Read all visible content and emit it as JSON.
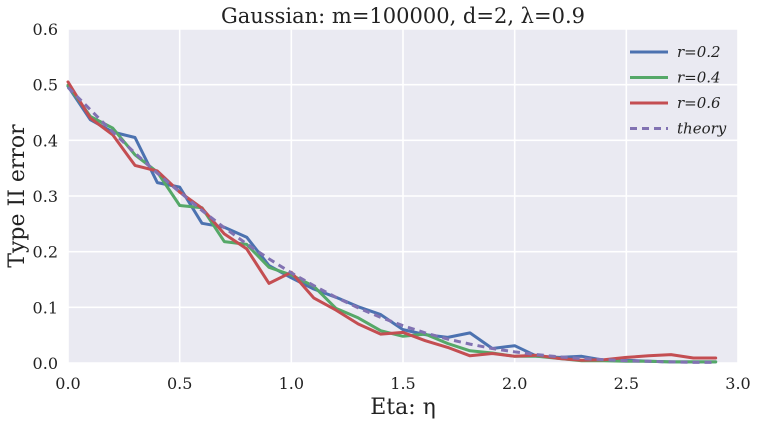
{
  "chart_data": {
    "type": "line",
    "title": "Gaussian: m=100000, d=2, λ=0.9",
    "xlabel": "Eta: η",
    "ylabel": "Type II error",
    "xlim": [
      0.0,
      3.0
    ],
    "ylim": [
      0.0,
      0.6
    ],
    "xticks": [
      "0.0",
      "0.5",
      "1.0",
      "1.5",
      "2.0",
      "2.5",
      "3.0"
    ],
    "yticks": [
      "0.0",
      "0.1",
      "0.2",
      "0.3",
      "0.4",
      "0.5",
      "0.6"
    ],
    "grid": true,
    "legend_position": "top-right",
    "x": [
      0.0,
      0.1,
      0.2,
      0.3,
      0.4,
      0.5,
      0.6,
      0.7,
      0.8,
      0.9,
      1.0,
      1.1,
      1.2,
      1.3,
      1.4,
      1.5,
      1.6,
      1.7,
      1.8,
      1.9,
      2.0,
      2.1,
      2.2,
      2.3,
      2.4,
      2.5,
      2.6,
      2.7,
      2.8,
      2.9
    ],
    "series": [
      {
        "name": "r=0.2",
        "color": "#4c72b0",
        "dash": false,
        "values": [
          0.497,
          0.437,
          0.415,
          0.405,
          0.324,
          0.316,
          0.251,
          0.244,
          0.226,
          0.175,
          0.153,
          0.133,
          0.118,
          0.101,
          0.087,
          0.06,
          0.051,
          0.046,
          0.054,
          0.026,
          0.031,
          0.012,
          0.01,
          0.012,
          0.005,
          0.005,
          0.003,
          0.002,
          0.002,
          0.002
        ]
      },
      {
        "name": "r=0.4",
        "color": "#55a868",
        "dash": false,
        "values": [
          0.499,
          0.443,
          0.422,
          0.374,
          0.343,
          0.283,
          0.279,
          0.218,
          0.213,
          0.172,
          0.158,
          0.138,
          0.098,
          0.081,
          0.058,
          0.048,
          0.052,
          0.035,
          0.022,
          0.018,
          0.012,
          0.012,
          0.008,
          0.004,
          0.004,
          0.003,
          0.003,
          0.002,
          0.002,
          0.002
        ]
      },
      {
        "name": "r=0.6",
        "color": "#c44e52",
        "dash": false,
        "values": [
          0.505,
          0.44,
          0.41,
          0.355,
          0.345,
          0.307,
          0.278,
          0.232,
          0.205,
          0.143,
          0.163,
          0.117,
          0.095,
          0.07,
          0.052,
          0.055,
          0.04,
          0.028,
          0.013,
          0.017,
          0.012,
          0.014,
          0.008,
          0.005,
          0.006,
          0.01,
          0.013,
          0.015,
          0.009,
          0.009
        ]
      },
      {
        "name": "theory",
        "color": "#8172b2",
        "dash": true,
        "values": [
          0.495,
          0.455,
          0.415,
          0.377,
          0.341,
          0.307,
          0.274,
          0.243,
          0.214,
          0.187,
          0.162,
          0.139,
          0.118,
          0.099,
          0.082,
          0.067,
          0.054,
          0.043,
          0.034,
          0.026,
          0.02,
          0.015,
          0.011,
          0.008,
          0.006,
          0.004,
          0.003,
          0.002,
          0.001,
          0.001
        ]
      }
    ]
  }
}
